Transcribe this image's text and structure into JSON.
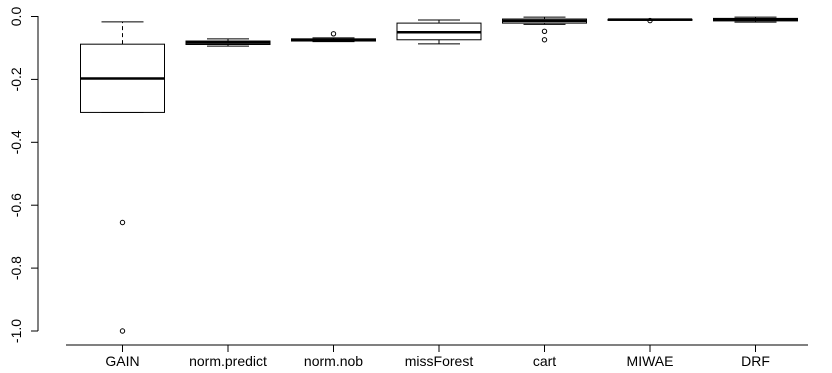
{
  "chart_data": {
    "type": "boxplot",
    "title": "",
    "xlabel": "",
    "ylabel": "",
    "ylim": [
      -1.02,
      0.02
    ],
    "yticks": [
      0.0,
      -0.2,
      -0.4,
      -0.6,
      -0.8,
      -1.0
    ],
    "ytick_labels": [
      "0.0",
      "-0.2",
      "-0.4",
      "-0.6",
      "-0.8",
      "-1.0"
    ],
    "grid": false,
    "categories": [
      "GAIN",
      "norm.predict",
      "norm.nob",
      "missForest",
      "cart",
      "MIWAE",
      "DRF"
    ],
    "boxes": [
      {
        "name": "GAIN",
        "whisker_low": -0.305,
        "q1": -0.305,
        "median": -0.197,
        "q3": -0.088,
        "whisker_high": -0.017,
        "outliers": [
          -0.655,
          -1.0
        ]
      },
      {
        "name": "norm.predict",
        "whisker_low": -0.094,
        "q1": -0.089,
        "median": -0.083,
        "q3": -0.078,
        "whisker_high": -0.071,
        "outliers": []
      },
      {
        "name": "norm.nob",
        "whisker_low": -0.08,
        "q1": -0.078,
        "median": -0.074,
        "q3": -0.071,
        "whisker_high": -0.068,
        "outliers": [
          -0.055
        ]
      },
      {
        "name": "missForest",
        "whisker_low": -0.087,
        "q1": -0.074,
        "median": -0.05,
        "q3": -0.021,
        "whisker_high": -0.011,
        "outliers": []
      },
      {
        "name": "cart",
        "whisker_low": -0.025,
        "q1": -0.021,
        "median": -0.014,
        "q3": -0.008,
        "whisker_high": -0.002,
        "outliers": [
          -0.047,
          -0.074
        ]
      },
      {
        "name": "MIWAE",
        "whisker_low": -0.012,
        "q1": -0.011,
        "median": -0.01,
        "q3": -0.009,
        "whisker_high": -0.008,
        "outliers": [
          -0.013
        ]
      },
      {
        "name": "DRF",
        "whisker_low": -0.018,
        "q1": -0.014,
        "median": -0.01,
        "q3": -0.006,
        "whisker_high": -0.002,
        "outliers": []
      }
    ]
  }
}
